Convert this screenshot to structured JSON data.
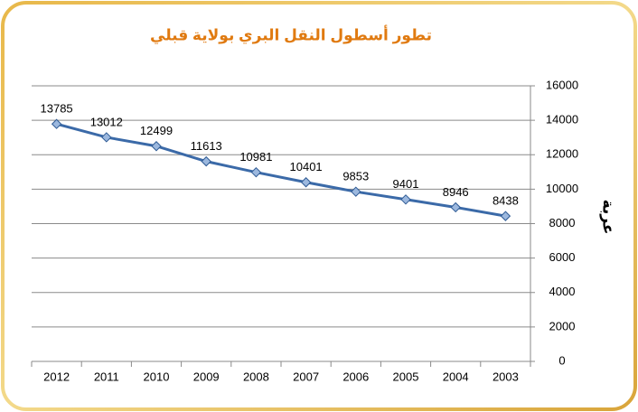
{
  "chart_data": {
    "type": "line",
    "title": "تطور أسطول النقل البري بولاية قبلي",
    "y_label": "عربة",
    "categories": [
      "2012",
      "2011",
      "2010",
      "2009",
      "2008",
      "2007",
      "2006",
      "2005",
      "2004",
      "2003"
    ],
    "series": [
      {
        "name": "عربة",
        "color": "#3b6aa8",
        "values": [
          13785,
          13012,
          12499,
          11613,
          10981,
          10401,
          9853,
          9401,
          8946,
          8438
        ]
      }
    ],
    "ylim": [
      0,
      16000
    ],
    "yticks": [
      0,
      2000,
      4000,
      6000,
      8000,
      10000,
      12000,
      14000,
      16000
    ],
    "grid": true,
    "y_axis_side": "right"
  }
}
